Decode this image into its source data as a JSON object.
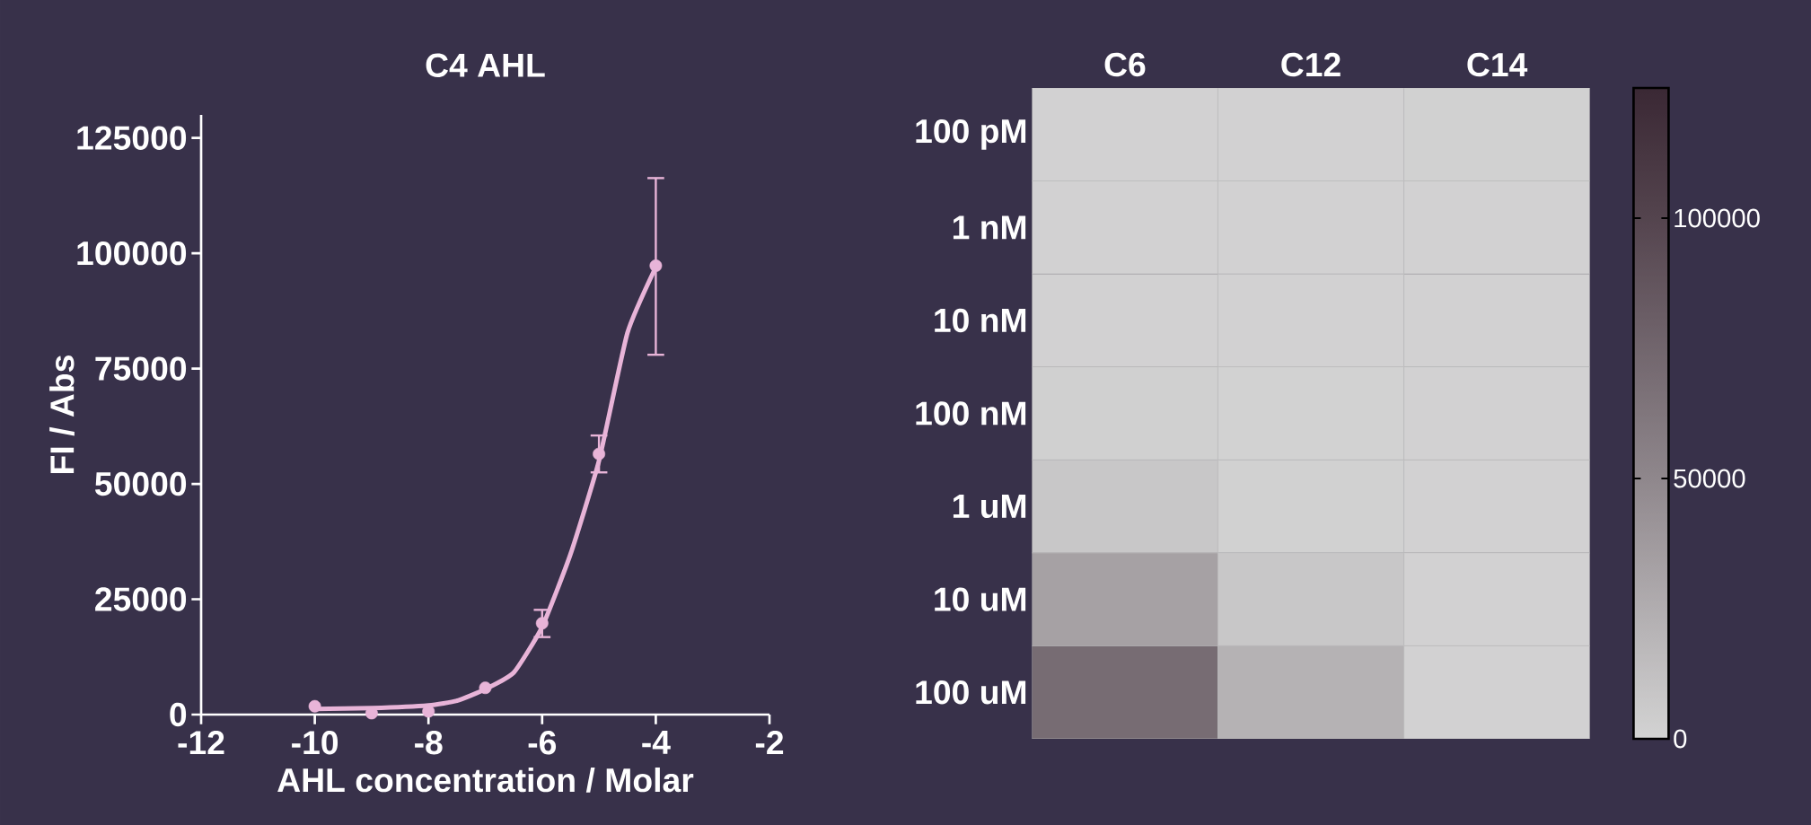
{
  "chart_data": [
    {
      "type": "scatter",
      "title": "C4 AHL",
      "xlabel": "AHL concentration / Molar",
      "ylabel": "FI / Abs",
      "xlim": [
        -12,
        -2
      ],
      "xticks": [
        -12,
        -10,
        -8,
        -6,
        -4,
        -2
      ],
      "ylim": [
        0,
        130000
      ],
      "yticks": [
        0,
        25000,
        50000,
        75000,
        100000,
        125000
      ],
      "grid": false,
      "series": [
        {
          "type": "scatter",
          "marker": "circle",
          "color": "#e8b4d8",
          "x": [
            -10,
            -9,
            -8,
            -7,
            -6,
            -5,
            -4
          ],
          "values": [
            1800,
            300,
            700,
            5800,
            19800,
            56500,
            97300
          ],
          "errors": [
            null,
            null,
            null,
            null,
            [
              16800,
              22700
            ],
            [
              52500,
              60500
            ],
            [
              78000,
              116300
            ]
          ]
        },
        {
          "type": "line",
          "marker": "none",
          "color": "#e8b4d8",
          "x": [
            -10,
            -9,
            -8,
            -7.5,
            -7,
            -6.5,
            -6,
            -5.5,
            -5,
            -4.5,
            -4
          ],
          "values": [
            1200,
            1400,
            2000,
            3000,
            5500,
            9100,
            19000,
            34800,
            55000,
            82700,
            97000
          ]
        }
      ]
    },
    {
      "type": "heatmap",
      "categories": [
        "C6",
        "C12",
        "C14"
      ],
      "y_categories": [
        "100 pM",
        "1 nM",
        "10 nM",
        "100 nM",
        "1 uM",
        "10 uM",
        "100 uM"
      ],
      "cells": [
        [
          1000,
          1000,
          1500
        ],
        [
          1000,
          1000,
          1000
        ],
        [
          1000,
          1000,
          1000
        ],
        [
          2000,
          500,
          1000
        ],
        [
          8000,
          1500,
          1000
        ],
        [
          33000,
          8000,
          1000
        ],
        [
          70000,
          22000,
          1000
        ]
      ],
      "clim": [
        0,
        125000
      ],
      "cticks": [
        0,
        50000,
        100000
      ]
    }
  ]
}
